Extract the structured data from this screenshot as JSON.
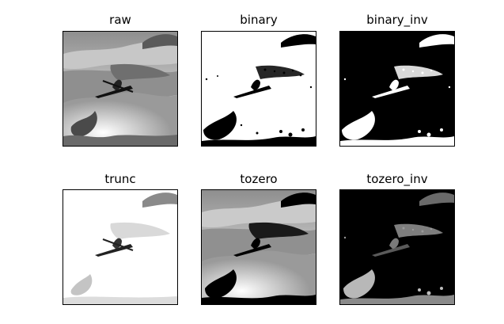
{
  "panels": [
    {
      "id": "raw",
      "title": "raw",
      "theme": "gray"
    },
    {
      "id": "binary",
      "title": "binary",
      "theme": "binary"
    },
    {
      "id": "binary_inv",
      "title": "binary_inv",
      "theme": "binary_inv"
    },
    {
      "id": "trunc",
      "title": "trunc",
      "theme": "trunc"
    },
    {
      "id": "tozero",
      "title": "tozero",
      "theme": "tozero"
    },
    {
      "id": "tozero_inv",
      "title": "tozero_inv",
      "theme": "tozero_inv"
    }
  ],
  "colors": {
    "background": "#ffffff",
    "frame": "#000000"
  }
}
